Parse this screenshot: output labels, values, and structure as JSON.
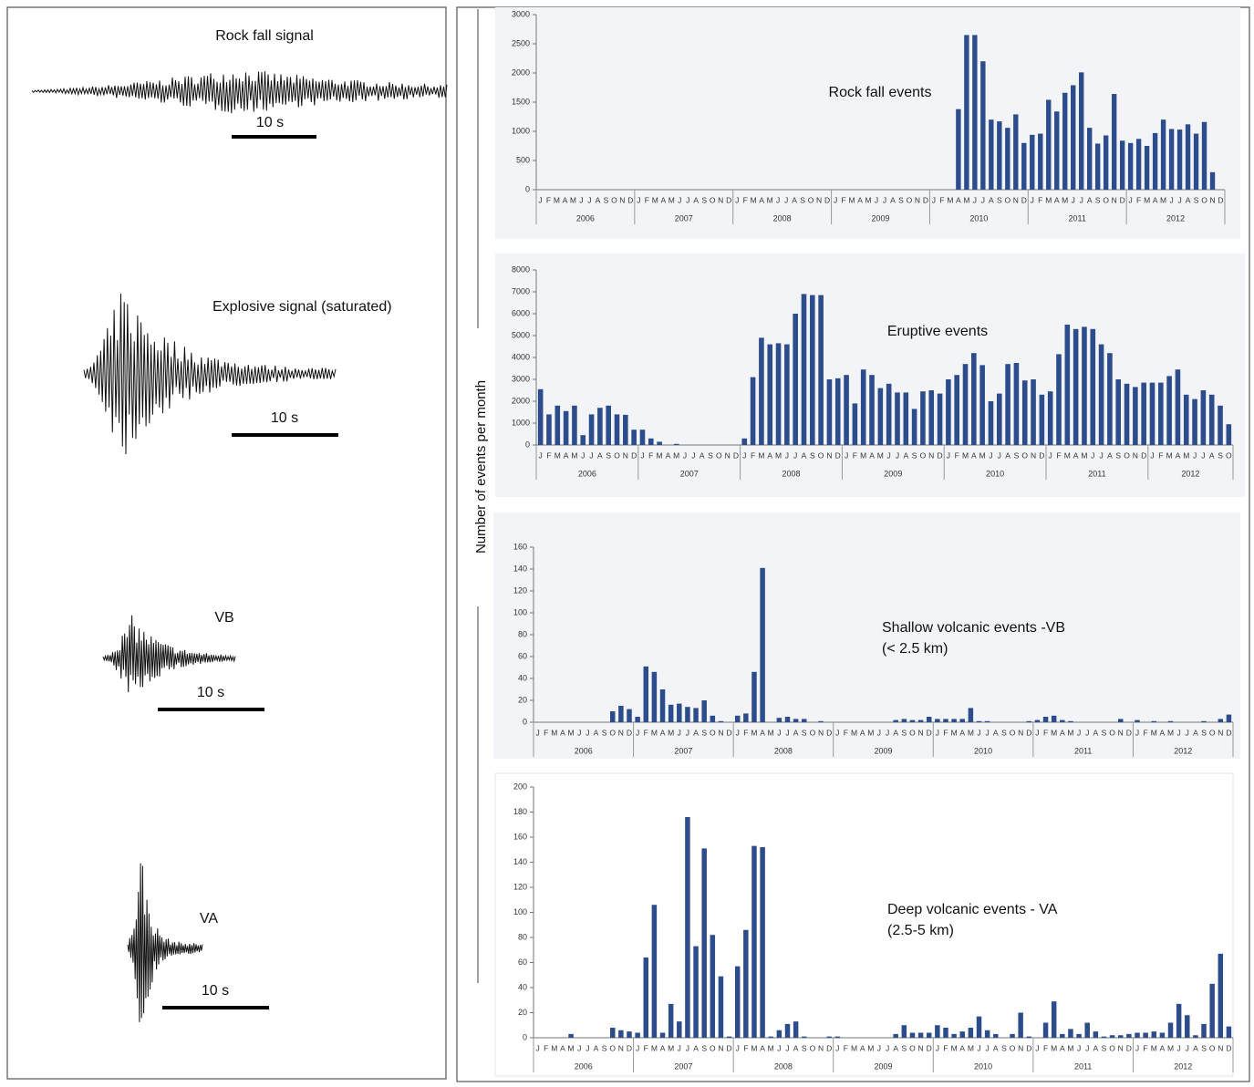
{
  "shared_y_label": "Number of events per month",
  "signals": [
    {
      "label": "Rock fall signal",
      "scale": "10 s"
    },
    {
      "label": "Explosive signal (saturated)",
      "scale": "10 s"
    },
    {
      "label": "VB",
      "scale": "10 s"
    },
    {
      "label": "VA",
      "scale": "10 s"
    }
  ],
  "chart_data": [
    {
      "type": "bar",
      "title": "Rock fall events",
      "color": "#2c4c8c",
      "categories": [
        "J",
        "F",
        "M",
        "A",
        "M",
        "J",
        "J",
        "A",
        "S",
        "O",
        "N",
        "D",
        "J",
        "F",
        "M",
        "A",
        "M",
        "J",
        "J",
        "A",
        "S",
        "O",
        "N",
        "D",
        "J",
        "F",
        "M",
        "A",
        "M",
        "J",
        "J",
        "A",
        "S",
        "O",
        "N",
        "D",
        "J",
        "F",
        "M",
        "A",
        "M",
        "J",
        "J",
        "A",
        "S",
        "O",
        "N",
        "D",
        "J",
        "F",
        "M",
        "A",
        "M",
        "J",
        "J",
        "A",
        "S",
        "O",
        "N",
        "D",
        "J",
        "F",
        "M",
        "A",
        "M",
        "J",
        "J",
        "A",
        "S",
        "O",
        "N",
        "D",
        "J",
        "F",
        "M",
        "A",
        "M",
        "J",
        "J",
        "A",
        "S",
        "O",
        "N",
        "D"
      ],
      "years": [
        "2006",
        "2007",
        "2008",
        "2009",
        "2010",
        "2011",
        "2012"
      ],
      "values": [
        0,
        0,
        0,
        0,
        0,
        0,
        0,
        0,
        0,
        0,
        0,
        0,
        0,
        0,
        0,
        0,
        0,
        0,
        0,
        0,
        0,
        0,
        0,
        0,
        0,
        0,
        0,
        0,
        0,
        0,
        0,
        0,
        0,
        0,
        0,
        0,
        0,
        0,
        0,
        0,
        0,
        0,
        0,
        0,
        0,
        0,
        0,
        0,
        0,
        0,
        0,
        1380,
        2650,
        2650,
        2200,
        1200,
        1170,
        1060,
        1290,
        800,
        940,
        960,
        1540,
        1340,
        1660,
        1790,
        2010,
        1060,
        790,
        930,
        1640,
        840,
        800,
        870,
        750,
        970,
        1200,
        1040,
        1030,
        1120,
        960,
        1160,
        300,
        0
      ],
      "ylim": [
        0,
        3000
      ],
      "yticks": [
        0,
        500,
        1000,
        1500,
        2000,
        2500,
        3000
      ]
    },
    {
      "type": "bar",
      "title": "Eruptive events",
      "color": "#2c4c8c",
      "categories": [
        "J",
        "F",
        "M",
        "A",
        "M",
        "J",
        "J",
        "A",
        "S",
        "O",
        "N",
        "D",
        "J",
        "F",
        "M",
        "A",
        "M",
        "J",
        "J",
        "A",
        "S",
        "O",
        "N",
        "D",
        "J",
        "F",
        "M",
        "A",
        "M",
        "J",
        "J",
        "A",
        "S",
        "O",
        "N",
        "D",
        "J",
        "F",
        "M",
        "A",
        "M",
        "J",
        "J",
        "A",
        "S",
        "O",
        "N",
        "D",
        "J",
        "F",
        "M",
        "A",
        "M",
        "J",
        "J",
        "A",
        "S",
        "O",
        "N",
        "D",
        "J",
        "F",
        "M",
        "A",
        "M",
        "J",
        "J",
        "A",
        "S",
        "O",
        "N",
        "D",
        "J",
        "F",
        "M",
        "A",
        "M",
        "J",
        "J",
        "A",
        "S",
        "O"
      ],
      "years": [
        "2006",
        "2007",
        "2008",
        "2009",
        "2010",
        "2011",
        "2012"
      ],
      "values": [
        2550,
        1400,
        1800,
        1550,
        1800,
        450,
        1400,
        1700,
        1800,
        1400,
        1380,
        700,
        700,
        300,
        150,
        0,
        50,
        0,
        0,
        0,
        0,
        0,
        0,
        0,
        300,
        3100,
        4900,
        4600,
        4650,
        4600,
        6000,
        6900,
        6850,
        6850,
        3000,
        3050,
        3200,
        1900,
        3450,
        3200,
        2600,
        2800,
        2400,
        2400,
        1650,
        2450,
        2500,
        2350,
        3000,
        3200,
        3700,
        4200,
        3650,
        2000,
        2350,
        3700,
        3750,
        2950,
        3000,
        2300,
        2450,
        4150,
        5500,
        5300,
        5400,
        5300,
        4600,
        4200,
        3000,
        2800,
        2650,
        2850,
        2850,
        2850,
        3150,
        3450,
        2300,
        2100,
        2500,
        2300,
        1800,
        950
      ],
      "ylim": [
        0,
        8000
      ],
      "yticks": [
        0,
        1000,
        2000,
        3000,
        4000,
        5000,
        6000,
        7000,
        8000
      ]
    },
    {
      "type": "bar",
      "title": "Shallow volcanic events -VB",
      "subtitle": "(< 2.5 km)",
      "color": "#2c4c8c",
      "categories": [
        "J",
        "F",
        "M",
        "A",
        "M",
        "J",
        "J",
        "A",
        "S",
        "O",
        "N",
        "D",
        "J",
        "F",
        "M",
        "A",
        "M",
        "J",
        "J",
        "A",
        "S",
        "O",
        "N",
        "D",
        "J",
        "F",
        "M",
        "A",
        "M",
        "J",
        "J",
        "A",
        "S",
        "O",
        "N",
        "D",
        "J",
        "F",
        "M",
        "A",
        "M",
        "J",
        "J",
        "A",
        "S",
        "O",
        "N",
        "D",
        "J",
        "F",
        "M",
        "A",
        "M",
        "J",
        "J",
        "A",
        "S",
        "O",
        "N",
        "D",
        "J",
        "F",
        "M",
        "A",
        "M",
        "J",
        "J",
        "A",
        "S",
        "O",
        "N",
        "D",
        "J",
        "F",
        "M",
        "A",
        "M",
        "J",
        "J",
        "A",
        "S",
        "O",
        "N",
        "D"
      ],
      "years": [
        "2006",
        "2007",
        "2008",
        "2009",
        "2010",
        "2011",
        "2012"
      ],
      "values": [
        0,
        0,
        0,
        0,
        0,
        0,
        0,
        0,
        0,
        10,
        15,
        12,
        5,
        51,
        46,
        30,
        16,
        17,
        14,
        13,
        20,
        6,
        1,
        0,
        6,
        8,
        46,
        141,
        0,
        4,
        5,
        3,
        3,
        0,
        1,
        0,
        0,
        0,
        0,
        0,
        0,
        0,
        0,
        2,
        3,
        2,
        2,
        5,
        3,
        3,
        3,
        3,
        13,
        1,
        1,
        0,
        0,
        0,
        0,
        1,
        2,
        5,
        6,
        2,
        1,
        0,
        0,
        0,
        0,
        0,
        3,
        0,
        2,
        0,
        1,
        0,
        1,
        0,
        0,
        0,
        1,
        0,
        3,
        7
      ],
      "ylim": [
        0,
        160
      ],
      "yticks": [
        0,
        20,
        40,
        60,
        80,
        100,
        120,
        140,
        160
      ]
    },
    {
      "type": "bar",
      "title": "Deep volcanic events - VA",
      "subtitle": "(2.5-5 km)",
      "color": "#2c4c8c",
      "categories": [
        "J",
        "F",
        "M",
        "A",
        "M",
        "J",
        "J",
        "A",
        "S",
        "O",
        "N",
        "D",
        "J",
        "F",
        "M",
        "A",
        "M",
        "J",
        "J",
        "A",
        "S",
        "O",
        "N",
        "D",
        "J",
        "F",
        "M",
        "A",
        "M",
        "J",
        "J",
        "A",
        "S",
        "O",
        "N",
        "D",
        "J",
        "F",
        "M",
        "A",
        "M",
        "J",
        "J",
        "A",
        "S",
        "O",
        "N",
        "D",
        "J",
        "F",
        "M",
        "A",
        "M",
        "J",
        "J",
        "A",
        "S",
        "O",
        "N",
        "D",
        "J",
        "F",
        "M",
        "A",
        "M",
        "J",
        "J",
        "A",
        "S",
        "O",
        "N",
        "D",
        "J",
        "F",
        "M",
        "A",
        "M",
        "J",
        "J",
        "A",
        "S",
        "O",
        "N",
        "D"
      ],
      "years": [
        "2006",
        "2007",
        "2008",
        "2009",
        "2010",
        "2011",
        "2012"
      ],
      "values": [
        0,
        0,
        0,
        0,
        3,
        0,
        0,
        0,
        0,
        8,
        6,
        5,
        4,
        64,
        106,
        4,
        27,
        13,
        176,
        73,
        151,
        82,
        49,
        1,
        57,
        86,
        153,
        152,
        1,
        6,
        11,
        13,
        1,
        0,
        0,
        1,
        1,
        0,
        0,
        0,
        0,
        0,
        0,
        3,
        10,
        4,
        4,
        4,
        10,
        8,
        3,
        5,
        8,
        17,
        6,
        3,
        0,
        3,
        20,
        1,
        0,
        12,
        29,
        3,
        7,
        3,
        12,
        5,
        1,
        2,
        2,
        3,
        4,
        4,
        5,
        4,
        12,
        27,
        18,
        2,
        11,
        43,
        67,
        9
      ],
      "ylim": [
        0,
        200
      ],
      "yticks": [
        0,
        20,
        40,
        60,
        80,
        100,
        120,
        140,
        160,
        180,
        200
      ]
    }
  ]
}
